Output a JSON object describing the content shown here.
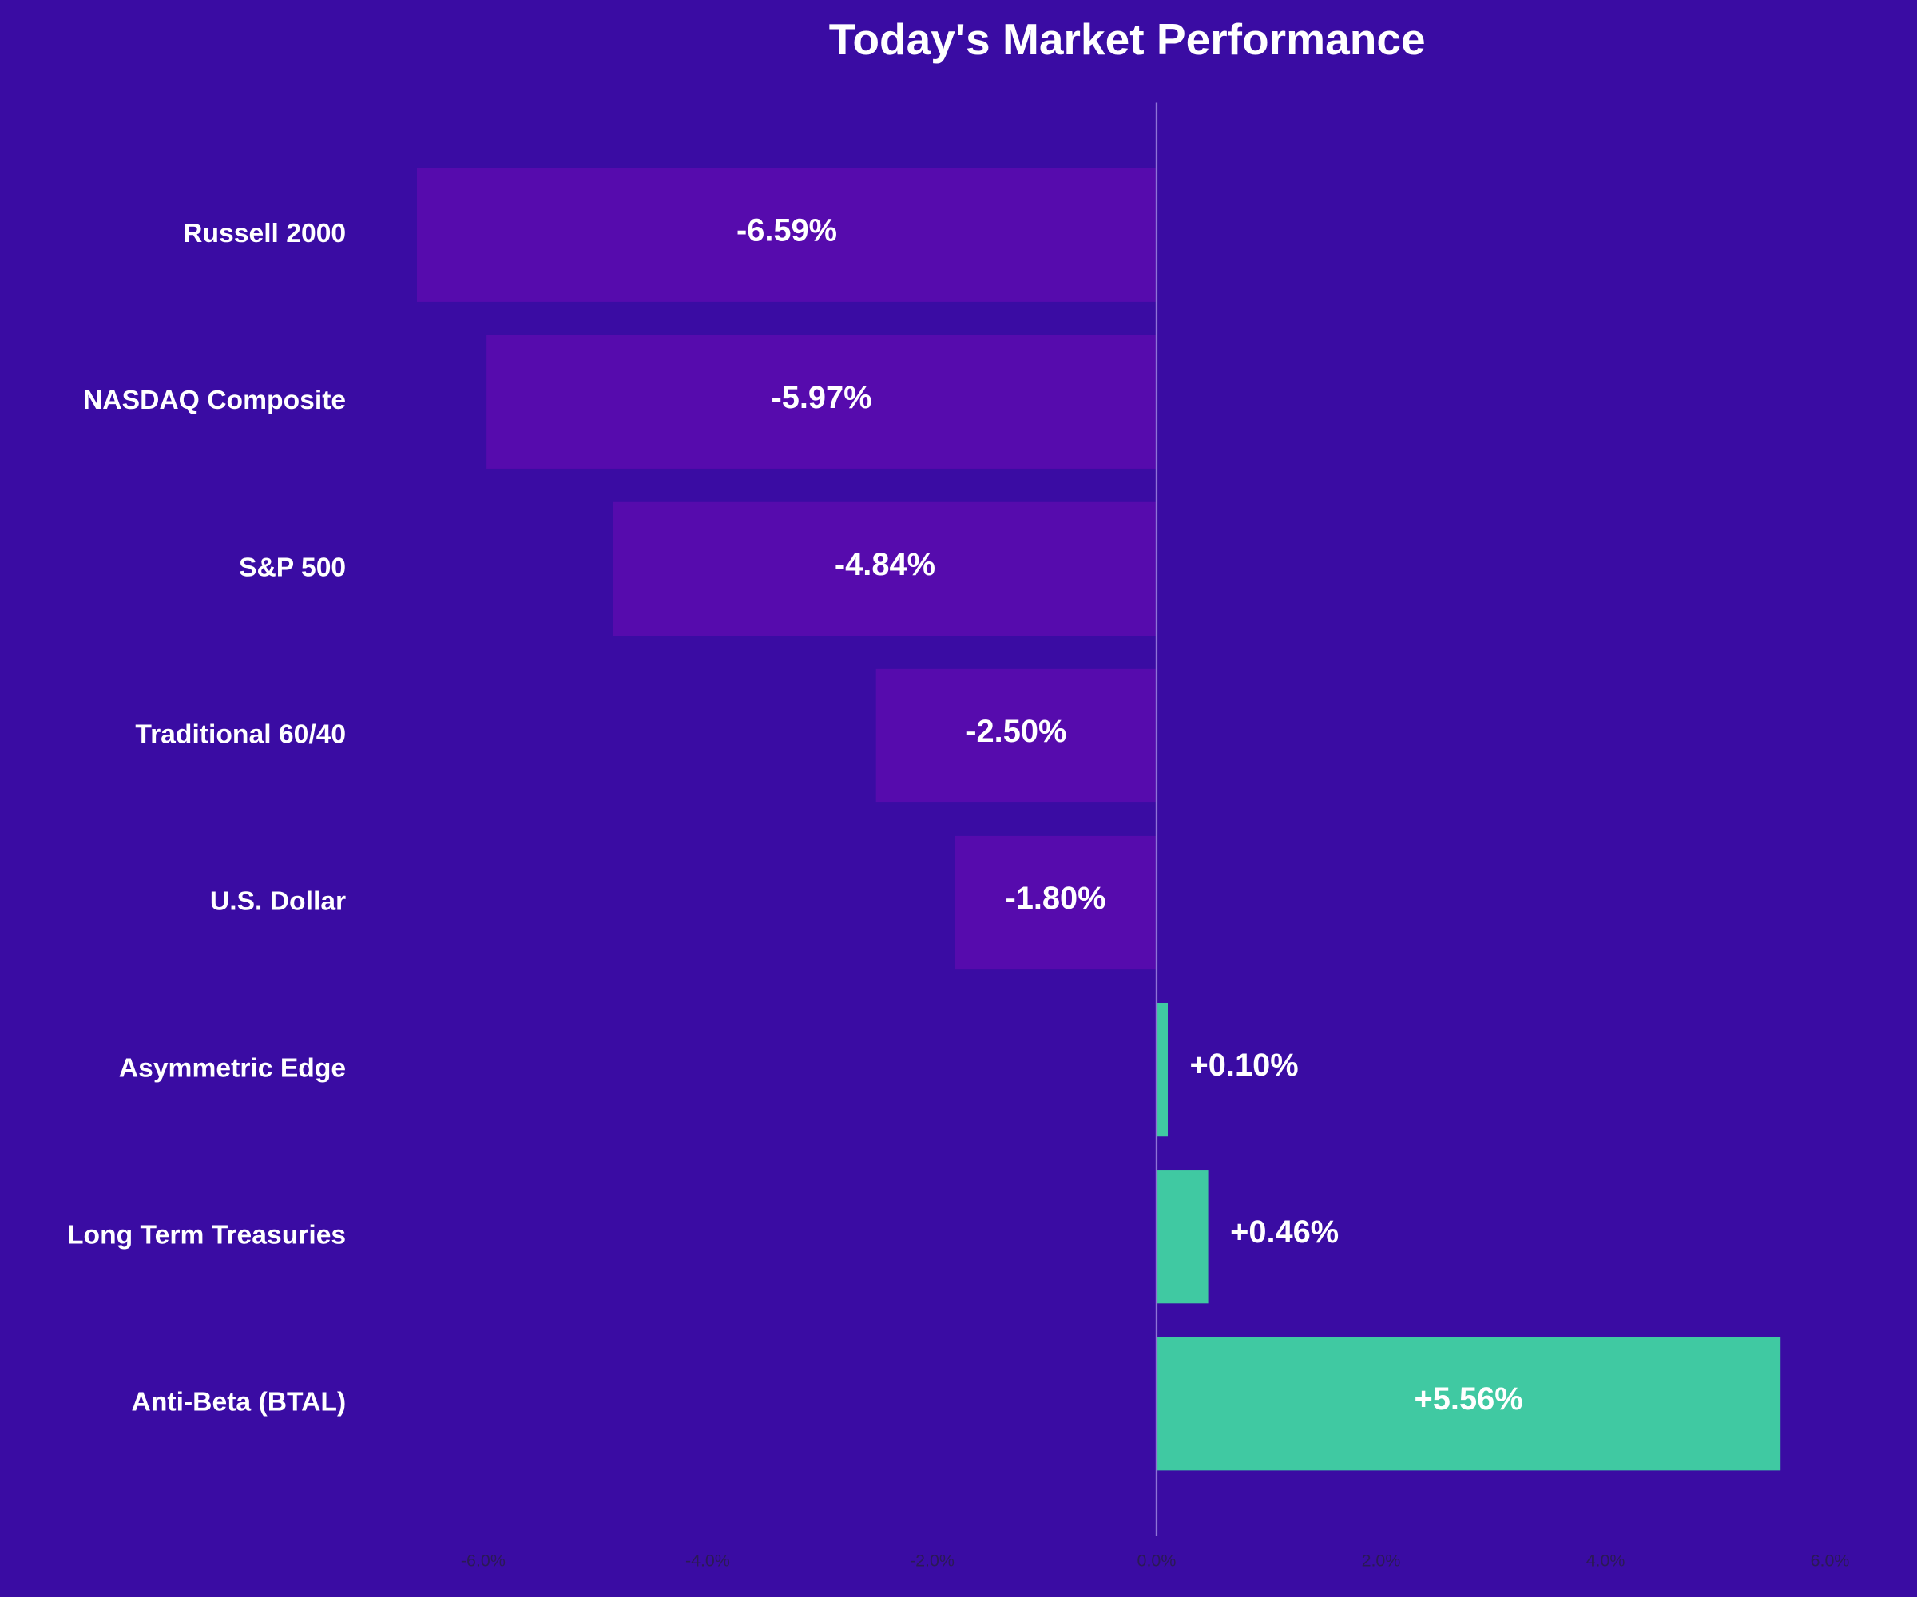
{
  "chart_data": {
    "type": "hbar",
    "title": "Today's Market Performance",
    "categories": [
      "Russell 2000",
      "NASDAQ Composite",
      "S&P 500",
      "Traditional 60/40",
      "U.S. Dollar",
      "Asymmetric Edge",
      "Long Term Treasuries",
      "Anti-Beta (BTAL)"
    ],
    "values": [
      -6.59,
      -5.97,
      -4.84,
      -2.5,
      -1.8,
      0.1,
      0.46,
      5.56
    ],
    "value_labels": [
      "-6.59%",
      "-5.97%",
      "-4.84%",
      "-2.50%",
      "-1.80%",
      "+0.10%",
      "+0.46%",
      "+5.56%"
    ],
    "negative_color": "#560bad",
    "positive_color": "#40c9a2",
    "xlim": [
      -7.0,
      6.5
    ],
    "xticks": [
      {
        "value": -6,
        "label": "-6.0%"
      },
      {
        "value": -4,
        "label": "-4.0%"
      },
      {
        "value": -2,
        "label": "-2.0%"
      },
      {
        "value": 0,
        "label": "0.0%"
      },
      {
        "value": 2,
        "label": "2.0%"
      },
      {
        "value": 4,
        "label": "4.0%"
      },
      {
        "value": 6,
        "label": "6.0%"
      }
    ]
  }
}
